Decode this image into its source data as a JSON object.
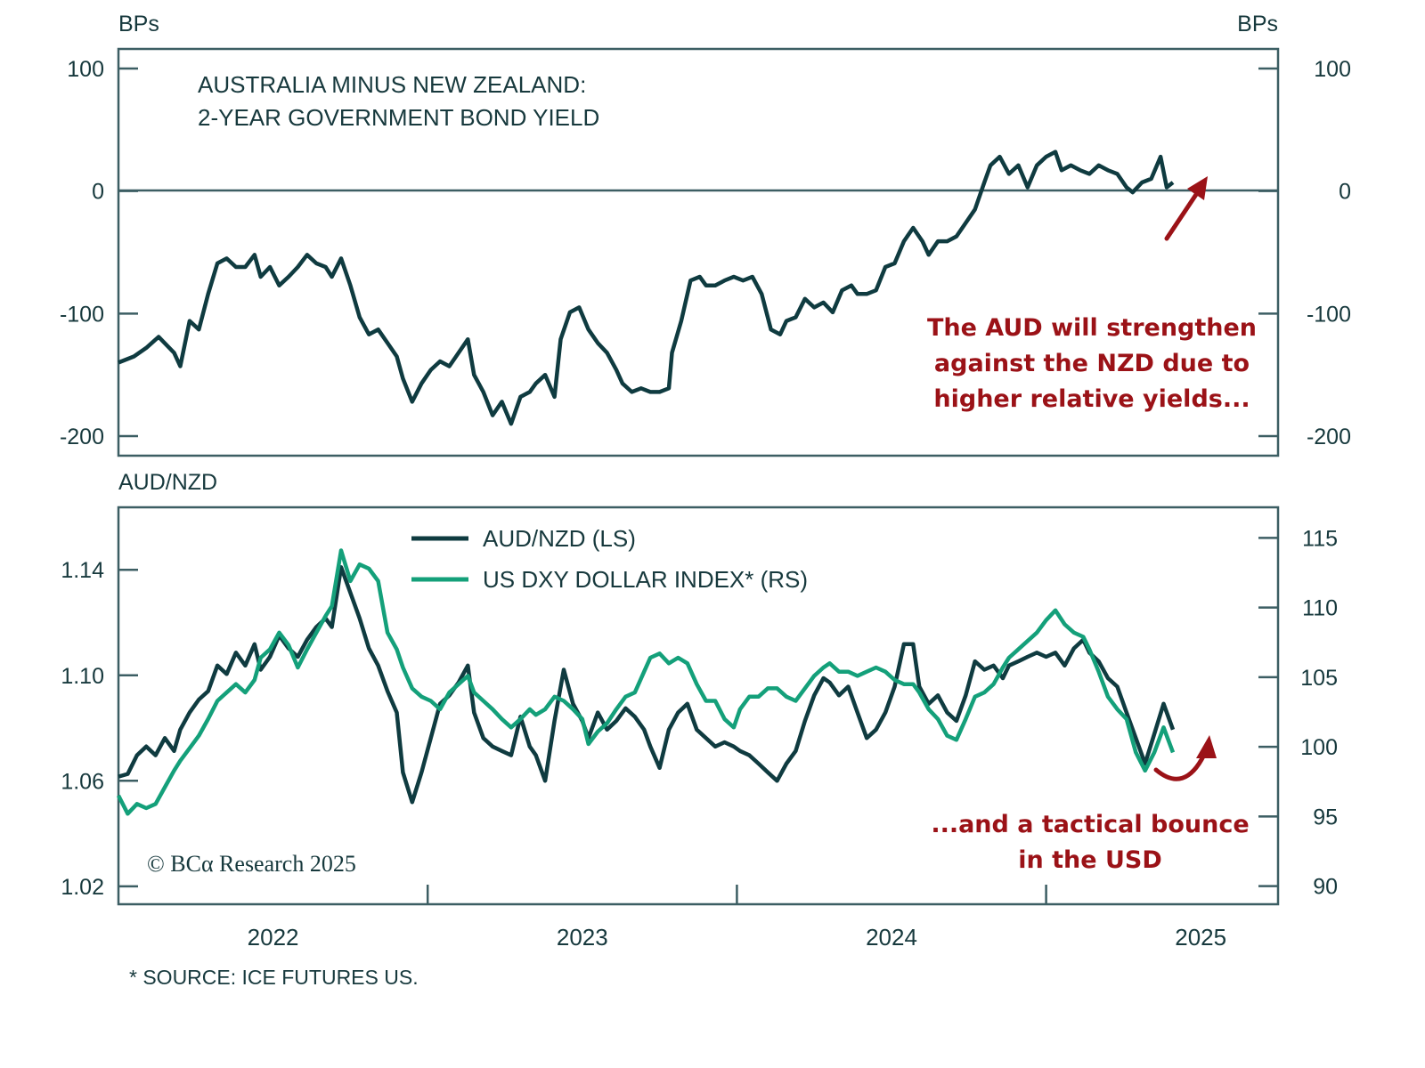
{
  "colors": {
    "dark_series": "#0f3b40",
    "green_series": "#14a07a",
    "annotation": "#9b1217",
    "axis": "#3c5e63",
    "text": "#17393d"
  },
  "top_panel": {
    "title_line1": "AUSTRALIA MINUS NEW ZEALAND:",
    "title_line2": "2-YEAR GOVERNMENT BOND YIELD",
    "left_unit": "BPs",
    "right_unit": "BPs",
    "annotation_lines": [
      "The AUD will strengthen",
      "against the NZD due to",
      "higher relative yields..."
    ]
  },
  "bottom_panel": {
    "left_unit": "AUD/NZD",
    "legend": [
      {
        "label": "AUD/NZD (LS)",
        "series": "audnzd"
      },
      {
        "label": "US DXY DOLLAR INDEX* (RS)",
        "series": "dxy"
      }
    ],
    "annotation_lines": [
      "...and a tactical bounce",
      "in the USD"
    ],
    "copyright": "© BCα Research 2025"
  },
  "footnote": "* SOURCE: ICE FUTURES US.",
  "chart_data": [
    {
      "type": "line",
      "title": "AUSTRALIA MINUS NEW ZEALAND: 2-YEAR GOVERNMENT BOND YIELD",
      "ylabel": "BPs",
      "y2label": "BPs",
      "ylim": [
        -216,
        116
      ],
      "yticks": [
        100,
        0,
        -100,
        -200
      ],
      "ytick_labels": [
        "100",
        "0",
        "-100",
        "-200"
      ],
      "y2ticks": [
        100,
        0,
        -100,
        -200
      ],
      "y2tick_labels": [
        "100",
        "0",
        "-100",
        "-200"
      ],
      "xlim": [
        2022.0,
        2025.75
      ],
      "reference_line": 0,
      "grid": false,
      "series": [
        {
          "name": "Australia minus New Zealand 2Y yield spread",
          "color": "#0f3b40",
          "x": [
            2022.0,
            2022.05,
            2022.09,
            2022.13,
            2022.18,
            2022.2,
            2022.23,
            2022.26,
            2022.29,
            2022.32,
            2022.35,
            2022.38,
            2022.41,
            2022.44,
            2022.46,
            2022.49,
            2022.52,
            2022.55,
            2022.58,
            2022.61,
            2022.64,
            2022.67,
            2022.69,
            2022.72,
            2022.75,
            2022.78,
            2022.81,
            2022.84,
            2022.87,
            2022.9,
            2022.92,
            2022.95,
            2022.98,
            2023.01,
            2023.04,
            2023.07,
            2023.1,
            2023.13,
            2023.15,
            2023.18,
            2023.21,
            2023.24,
            2023.27,
            2023.3,
            2023.33,
            2023.35,
            2023.38,
            2023.41,
            2023.43,
            2023.46,
            2023.49,
            2023.52,
            2023.55,
            2023.58,
            2023.61,
            2023.63,
            2023.66,
            2023.69,
            2023.72,
            2023.75,
            2023.78,
            2023.79,
            2023.82,
            2023.85,
            2023.88,
            2023.9,
            2023.93,
            2023.96,
            2023.99,
            2024.02,
            2024.05,
            2024.08,
            2024.11,
            2024.14,
            2024.16,
            2024.19,
            2024.22,
            2024.25,
            2024.28,
            2024.31,
            2024.34,
            2024.37,
            2024.39,
            2024.42,
            2024.45,
            2024.48,
            2024.51,
            2024.54,
            2024.57,
            2024.6,
            2024.62,
            2024.65,
            2024.68,
            2024.71,
            2024.74,
            2024.77,
            2024.8,
            2024.82,
            2024.85,
            2024.88,
            2024.91,
            2024.94,
            2024.97,
            2025.0,
            2025.03,
            2025.05,
            2025.08,
            2025.11,
            2025.14,
            2025.17,
            2025.2,
            2025.23,
            2025.26,
            2025.28,
            2025.31,
            2025.34,
            2025.37,
            2025.39,
            2025.41
          ],
          "values": [
            -140,
            -135,
            -128,
            -119,
            -132,
            -143,
            -106,
            -113,
            -84,
            -59,
            -55,
            -62,
            -62,
            -52,
            -70,
            -62,
            -77,
            -70,
            -62,
            -52,
            -59,
            -62,
            -70,
            -55,
            -77,
            -103,
            -117,
            -113,
            -124,
            -135,
            -153,
            -172,
            -157,
            -146,
            -139,
            -143,
            -132,
            -121,
            -150,
            -164,
            -183,
            -172,
            -190,
            -168,
            -164,
            -157,
            -150,
            -168,
            -121,
            -99,
            -95,
            -113,
            -124,
            -132,
            -146,
            -157,
            -164,
            -161,
            -164,
            -164,
            -161,
            -132,
            -106,
            -73,
            -70,
            -77,
            -77,
            -73,
            -70,
            -73,
            -70,
            -84,
            -113,
            -117,
            -106,
            -103,
            -88,
            -95,
            -91,
            -99,
            -81,
            -77,
            -84,
            -84,
            -81,
            -62,
            -59,
            -41,
            -30,
            -41,
            -52,
            -41,
            -41,
            -37,
            -26,
            -15,
            7,
            21,
            28,
            14,
            21,
            3,
            21,
            28,
            32,
            17,
            21,
            17,
            14,
            21,
            17,
            14,
            3,
            -1,
            7,
            10,
            28,
            3,
            7
          ]
        }
      ],
      "annotations": [
        "The AUD will strengthen against the NZD due to higher relative yields..."
      ],
      "annotation_arrow": "up-right"
    },
    {
      "type": "line",
      "title": "",
      "ylabel": "AUD/NZD",
      "ylim": [
        1.0132,
        1.1637
      ],
      "yticks": [
        1.14,
        1.1,
        1.06,
        1.02
      ],
      "ytick_labels": [
        "1.14",
        "1.10",
        "1.06",
        "1.02"
      ],
      "y2lim": [
        88.7,
        117.2
      ],
      "y2ticks": [
        115,
        110,
        105,
        100,
        95,
        90
      ],
      "y2tick_labels": [
        "115",
        "110",
        "105",
        "100",
        "95",
        "90"
      ],
      "xlim": [
        2022.0,
        2025.75
      ],
      "xticks": [
        2023.0,
        2024.0,
        2025.0
      ],
      "xtick_labels": [
        "2022",
        "2023",
        "2024",
        "2025"
      ],
      "xtick_label_positions": [
        2022.5,
        2023.5,
        2024.5,
        2025.5
      ],
      "legend_position": "top-center",
      "grid": false,
      "series": [
        {
          "name": "AUD/NZD (LS)",
          "axis": "left",
          "color": "#0f3b40",
          "x": [
            2022.0,
            2022.03,
            2022.06,
            2022.09,
            2022.12,
            2022.15,
            2022.18,
            2022.2,
            2022.23,
            2022.26,
            2022.29,
            2022.32,
            2022.35,
            2022.38,
            2022.41,
            2022.44,
            2022.46,
            2022.49,
            2022.52,
            2022.55,
            2022.58,
            2022.61,
            2022.64,
            2022.67,
            2022.69,
            2022.72,
            2022.75,
            2022.78,
            2022.81,
            2022.84,
            2022.87,
            2022.9,
            2022.92,
            2022.95,
            2022.98,
            2023.01,
            2023.04,
            2023.07,
            2023.1,
            2023.13,
            2023.15,
            2023.18,
            2023.21,
            2023.24,
            2023.27,
            2023.3,
            2023.33,
            2023.35,
            2023.38,
            2023.41,
            2023.44,
            2023.47,
            2023.5,
            2023.52,
            2023.55,
            2023.58,
            2023.61,
            2023.64,
            2023.67,
            2023.7,
            2023.72,
            2023.75,
            2023.78,
            2023.81,
            2023.84,
            2023.87,
            2023.9,
            2023.93,
            2023.96,
            2023.99,
            2024.01,
            2024.04,
            2024.07,
            2024.1,
            2024.13,
            2024.16,
            2024.19,
            2024.22,
            2024.25,
            2024.28,
            2024.3,
            2024.33,
            2024.36,
            2024.39,
            2024.42,
            2024.45,
            2024.48,
            2024.51,
            2024.54,
            2024.57,
            2024.59,
            2024.62,
            2024.65,
            2024.68,
            2024.71,
            2024.74,
            2024.77,
            2024.8,
            2024.83,
            2024.86,
            2024.88,
            2024.91,
            2024.94,
            2024.97,
            2025.0,
            2025.03,
            2025.06,
            2025.09,
            2025.12,
            2025.14,
            2025.17,
            2025.2,
            2025.23,
            2025.26,
            2025.29,
            2025.32,
            2025.35,
            2025.38,
            2025.41
          ],
          "values": [
            1.0616,
            1.0626,
            1.0697,
            1.073,
            1.0697,
            1.0762,
            1.0713,
            1.0794,
            1.0859,
            1.0908,
            1.094,
            1.1037,
            1.1005,
            1.1086,
            1.1037,
            1.1118,
            1.1021,
            1.107,
            1.1151,
            1.1102,
            1.107,
            1.1135,
            1.1183,
            1.1216,
            1.1183,
            1.141,
            1.1313,
            1.1216,
            1.1102,
            1.1037,
            1.094,
            1.0859,
            1.0632,
            1.0519,
            1.0632,
            1.0762,
            1.0892,
            1.0924,
            1.0973,
            1.1037,
            1.0859,
            1.0762,
            1.073,
            1.0713,
            1.0697,
            1.0843,
            1.073,
            1.0697,
            1.06,
            1.0827,
            1.1021,
            1.0892,
            1.0827,
            1.0762,
            1.0859,
            1.0794,
            1.0827,
            1.0875,
            1.0843,
            1.0794,
            1.073,
            1.0649,
            1.0794,
            1.0859,
            1.0892,
            1.0794,
            1.0762,
            1.073,
            1.0746,
            1.073,
            1.0713,
            1.0697,
            1.0665,
            1.0632,
            1.06,
            1.0665,
            1.0713,
            1.0827,
            1.0924,
            1.0989,
            1.0973,
            1.0924,
            1.0957,
            1.0859,
            1.0762,
            1.0794,
            1.0859,
            1.0957,
            1.1118,
            1.1118,
            1.0957,
            1.0892,
            1.0924,
            1.0859,
            1.0827,
            1.0924,
            1.1053,
            1.1021,
            1.1037,
            1.0989,
            1.1037,
            1.1053,
            1.107,
            1.1086,
            1.107,
            1.1086,
            1.1037,
            1.1102,
            1.1135,
            1.1086,
            1.1053,
            1.0989,
            1.0957,
            1.0859,
            1.0762,
            1.0665,
            1.0778,
            1.0892,
            1.0794
          ]
        },
        {
          "name": "US DXY DOLLAR INDEX* (RS)",
          "axis": "right",
          "color": "#14a07a",
          "x": [
            2022.0,
            2022.03,
            2022.06,
            2022.09,
            2022.12,
            2022.15,
            2022.18,
            2022.2,
            2022.23,
            2022.26,
            2022.29,
            2022.32,
            2022.35,
            2022.38,
            2022.41,
            2022.44,
            2022.46,
            2022.49,
            2022.52,
            2022.55,
            2022.58,
            2022.61,
            2022.64,
            2022.67,
            2022.69,
            2022.72,
            2022.75,
            2022.78,
            2022.81,
            2022.84,
            2022.87,
            2022.9,
            2022.92,
            2022.95,
            2022.98,
            2023.01,
            2023.04,
            2023.07,
            2023.1,
            2023.13,
            2023.15,
            2023.18,
            2023.21,
            2023.24,
            2023.27,
            2023.3,
            2023.33,
            2023.35,
            2023.38,
            2023.41,
            2023.44,
            2023.47,
            2023.5,
            2023.52,
            2023.55,
            2023.58,
            2023.61,
            2023.64,
            2023.67,
            2023.7,
            2023.72,
            2023.75,
            2023.78,
            2023.81,
            2023.84,
            2023.87,
            2023.9,
            2023.93,
            2023.96,
            2023.99,
            2024.01,
            2024.04,
            2024.07,
            2024.1,
            2024.13,
            2024.16,
            2024.19,
            2024.22,
            2024.25,
            2024.28,
            2024.3,
            2024.33,
            2024.36,
            2024.39,
            2024.42,
            2024.45,
            2024.48,
            2024.51,
            2024.54,
            2024.57,
            2024.59,
            2024.62,
            2024.65,
            2024.68,
            2024.71,
            2024.74,
            2024.77,
            2024.8,
            2024.83,
            2024.86,
            2024.88,
            2024.91,
            2024.94,
            2024.97,
            2025.0,
            2025.03,
            2025.06,
            2025.09,
            2025.12,
            2025.14,
            2025.17,
            2025.2,
            2025.23,
            2025.26,
            2025.29,
            2025.32,
            2025.35,
            2025.38,
            2025.41
          ],
          "values": [
            96.5,
            95.2,
            95.9,
            95.6,
            95.9,
            97.1,
            98.3,
            99.0,
            99.9,
            100.8,
            102.0,
            103.3,
            103.9,
            104.5,
            103.9,
            104.8,
            106.4,
            107.0,
            108.2,
            107.3,
            105.7,
            107.0,
            108.2,
            109.4,
            110.1,
            114.1,
            111.9,
            113.1,
            112.8,
            111.9,
            108.2,
            107.0,
            105.7,
            104.2,
            103.6,
            103.3,
            102.7,
            103.9,
            104.5,
            105.1,
            103.9,
            103.3,
            102.7,
            102.0,
            101.4,
            102.0,
            102.7,
            102.3,
            102.7,
            103.6,
            103.3,
            102.7,
            102.0,
            100.2,
            101.1,
            101.7,
            102.7,
            103.6,
            103.9,
            105.4,
            106.4,
            106.7,
            106.0,
            106.4,
            106.0,
            104.5,
            103.3,
            103.3,
            102.0,
            101.4,
            102.7,
            103.6,
            103.6,
            104.2,
            104.2,
            103.6,
            103.3,
            104.2,
            105.1,
            105.7,
            106.0,
            105.4,
            105.4,
            105.1,
            105.4,
            105.7,
            105.4,
            104.8,
            104.5,
            104.5,
            103.9,
            102.7,
            102.0,
            100.8,
            100.5,
            102.0,
            103.6,
            103.9,
            104.5,
            105.7,
            106.4,
            107.0,
            107.6,
            108.2,
            109.1,
            109.8,
            108.8,
            108.2,
            107.9,
            107.0,
            105.4,
            103.6,
            102.7,
            102.0,
            99.6,
            98.3,
            99.6,
            101.4,
            99.6
          ]
        }
      ],
      "annotations": [
        "...and a tactical bounce in the USD"
      ],
      "annotation_arrow": "curved-up"
    }
  ]
}
